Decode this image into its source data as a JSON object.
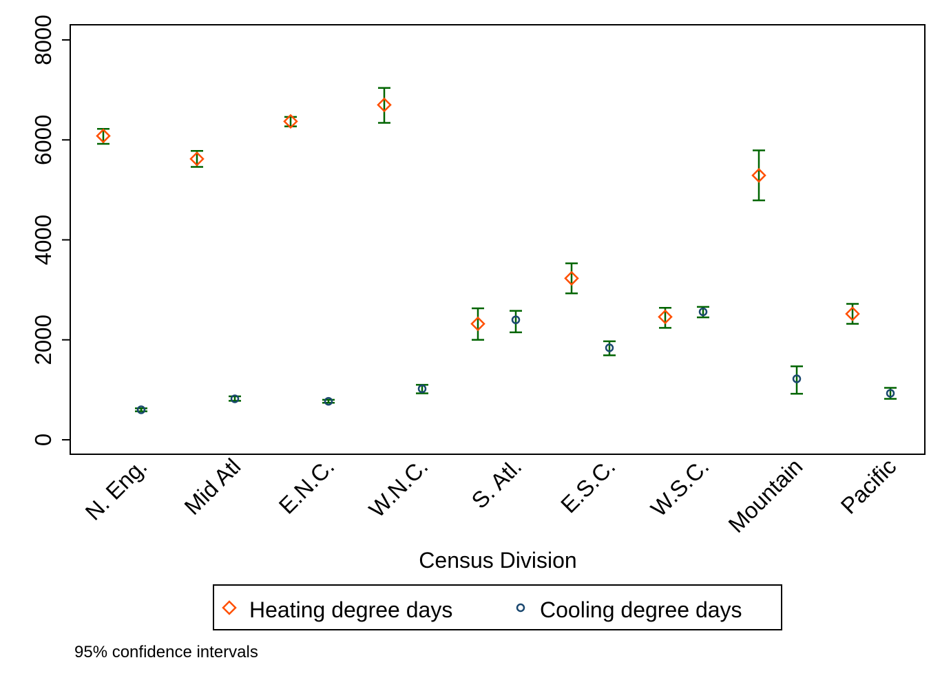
{
  "chart_data": {
    "type": "scatter",
    "categories": [
      "N. Eng.",
      "Mid Atl",
      "E.N.C.",
      "W.N.C.",
      "S. Atl.",
      "E.S.C.",
      "W.S.C.",
      "Mountain",
      "Pacific"
    ],
    "series": [
      {
        "name": "Heating degree days",
        "marker": "diamond",
        "color": "#ff4f00",
        "values": [
          6080,
          5620,
          6370,
          6700,
          2320,
          3230,
          2460,
          5290,
          2520
        ],
        "ci_low": [
          5920,
          5460,
          6270,
          6340,
          2000,
          2930,
          2240,
          4790,
          2320
        ],
        "ci_high": [
          6220,
          5780,
          6460,
          7040,
          2630,
          3530,
          2640,
          5790,
          2720
        ]
      },
      {
        "name": "Cooling degree days",
        "marker": "circle",
        "color": "#1a476f",
        "values": [
          600,
          820,
          770,
          1020,
          2400,
          1840,
          2560,
          1220,
          930
        ],
        "ci_low": [
          570,
          780,
          740,
          930,
          2150,
          1690,
          2450,
          920,
          820
        ],
        "ci_high": [
          630,
          870,
          800,
          1100,
          2580,
          1970,
          2660,
          1470,
          1040
        ]
      }
    ],
    "ci_color": "#006400",
    "xlabel": "Census Division",
    "ylabel": "",
    "ylim": [
      -290,
      8550
    ],
    "yticks": [
      0,
      2000,
      4000,
      6000,
      8000
    ],
    "ytick_labels": [
      "0",
      "2000",
      "4000",
      "6000",
      "8000"
    ],
    "grid": false,
    "legend_position": "bottom",
    "note": "95% confidence intervals"
  }
}
